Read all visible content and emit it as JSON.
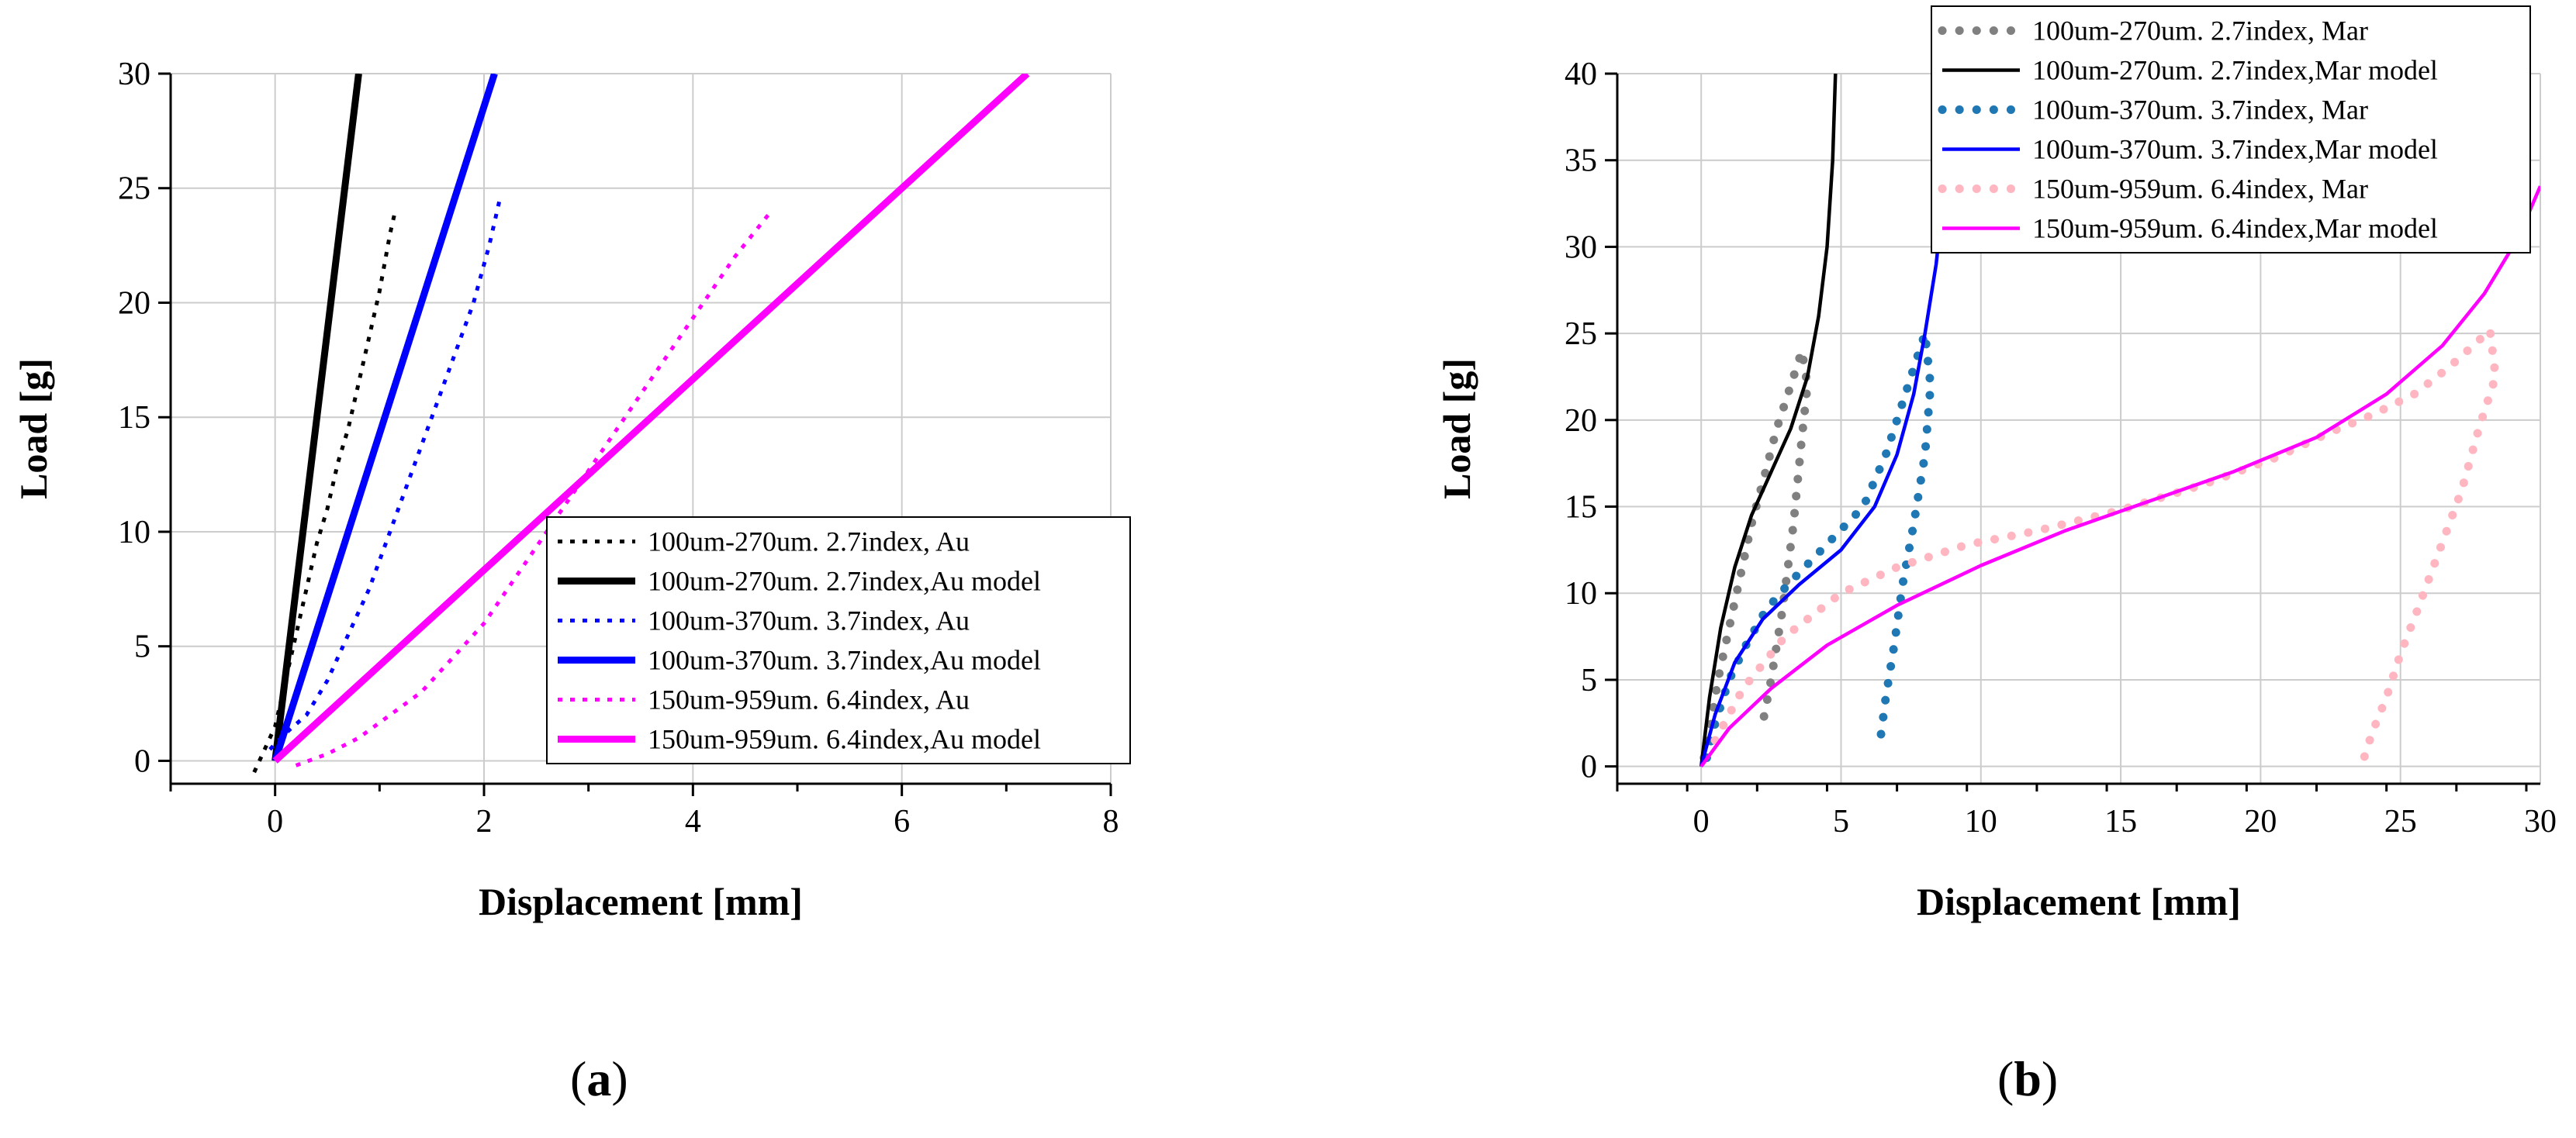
{
  "chart_data": [
    {
      "type": "line",
      "panel": "(a)",
      "panel_letter": "a",
      "xlabel": "Displacement [mm]",
      "ylabel": "Load [g]",
      "xlim": [
        -1,
        8
      ],
      "ylim": [
        -1,
        30
      ],
      "xticks": [
        0,
        2,
        4,
        6,
        8
      ],
      "yticks": [
        0,
        5,
        10,
        15,
        20,
        25,
        30
      ],
      "grid": true,
      "legend_position": "bottom-right",
      "series": [
        {
          "name": "100um-270um. 2.7index, Au",
          "style": "dotted",
          "color": "#000000",
          "x": [
            -0.2,
            -0.1,
            0.0,
            0.1,
            0.2,
            0.3,
            0.4,
            0.5,
            0.6,
            0.7,
            0.8,
            0.9,
            1.0,
            1.1,
            1.15
          ],
          "y": [
            -0.5,
            0.5,
            1.5,
            3.5,
            5.5,
            7.5,
            9.5,
            11.0,
            13.0,
            14.5,
            16.5,
            18.5,
            20.5,
            23.0,
            24.0
          ]
        },
        {
          "name": "100um-270um. 2.7index,Au model",
          "style": "solid-thick",
          "color": "#000000",
          "x": [
            0,
            0.8
          ],
          "y": [
            0,
            30
          ]
        },
        {
          "name": "100um-370um. 3.7index, Au",
          "style": "dotted",
          "color": "#0000ff",
          "x": [
            -0.05,
            0.1,
            0.3,
            0.5,
            0.7,
            0.9,
            1.1,
            1.3,
            1.5,
            1.7,
            1.9,
            2.05,
            2.15
          ],
          "y": [
            0.5,
            1.2,
            2.0,
            3.5,
            5.5,
            7.5,
            10.0,
            12.5,
            15.0,
            17.5,
            20.0,
            22.5,
            24.5
          ]
        },
        {
          "name": "100um-370um. 3.7index,Au model",
          "style": "solid-thick",
          "color": "#0000ff",
          "x": [
            0,
            2.1
          ],
          "y": [
            0,
            30
          ]
        },
        {
          "name": "150um-959um. 6.4index, Au",
          "style": "dotted",
          "color": "#ff00ff",
          "x": [
            0.2,
            0.5,
            0.8,
            1.1,
            1.4,
            1.7,
            2.0,
            2.3,
            2.6,
            2.9,
            3.2,
            3.5,
            3.8,
            4.1,
            4.4,
            4.75
          ],
          "y": [
            -0.2,
            0.3,
            1.0,
            2.0,
            3.0,
            4.5,
            6.0,
            8.0,
            10.0,
            12.0,
            14.0,
            16.0,
            18.0,
            20.0,
            22.0,
            24.0
          ]
        },
        {
          "name": "150um-959um. 6.4index,Au model",
          "style": "solid-thick",
          "color": "#ff00ff",
          "x": [
            0,
            7.2
          ],
          "y": [
            0,
            30
          ]
        }
      ]
    },
    {
      "type": "line",
      "panel": "(b)",
      "panel_letter": "b",
      "xlabel": "Displacement [mm]",
      "ylabel": "Load [g]",
      "xlim": [
        -3,
        30
      ],
      "ylim": [
        -1,
        40
      ],
      "xticks": [
        0,
        5,
        10,
        15,
        20,
        25,
        30
      ],
      "yticks": [
        0,
        5,
        10,
        15,
        20,
        25,
        30,
        35,
        40
      ],
      "grid": true,
      "legend_position": "top-right",
      "series": [
        {
          "name": "100um-270um. 2.7index, Mar",
          "style": "dots",
          "color": "#808080",
          "x": [
            0.1,
            0.3,
            0.6,
            1.0,
            1.4,
            1.8,
            2.3,
            2.7,
            3.0,
            3.3,
            3.6,
            3.8,
            3.6,
            3.3,
            2.9,
            2.5,
            2.2
          ],
          "y": [
            0.5,
            2.0,
            5.0,
            8.0,
            11.0,
            14.0,
            17.0,
            19.5,
            21.0,
            22.5,
            24.0,
            22.0,
            19.0,
            14.0,
            9.0,
            5.0,
            2.5
          ]
        },
        {
          "name": "100um-270um. 2.7index,Mar model",
          "style": "solid",
          "color": "#000000",
          "x": [
            0,
            0.3,
            0.7,
            1.2,
            1.8,
            2.5,
            3.2,
            3.8,
            4.2,
            4.5,
            4.7,
            4.8
          ],
          "y": [
            0,
            4,
            8,
            11.5,
            14.5,
            17,
            19.5,
            22.5,
            26,
            30,
            35,
            40
          ]
        },
        {
          "name": "100um-370um. 3.7index, Mar",
          "style": "dots",
          "color": "#1f77b4",
          "x": [
            0.2,
            0.5,
            1.0,
            1.6,
            2.3,
            3.1,
            4.0,
            4.9,
            5.8,
            6.6,
            7.2,
            7.7,
            8.0,
            8.2,
            8.0,
            7.6,
            7.2,
            6.9,
            6.6,
            6.4
          ],
          "y": [
            0.5,
            2.5,
            5.0,
            7.0,
            9.0,
            10.5,
            12.0,
            13.5,
            15.0,
            18.0,
            21.0,
            23.5,
            25.0,
            22.0,
            18.0,
            14.0,
            10.5,
            7.0,
            4.0,
            1.5
          ]
        },
        {
          "name": "100um-370um. 3.7index,Mar model",
          "style": "solid",
          "color": "#0000ff",
          "x": [
            0,
            0.5,
            1.2,
            2.2,
            3.5,
            5.0,
            6.2,
            7.0,
            7.6,
            8.0,
            8.4,
            8.6
          ],
          "y": [
            0,
            3,
            6,
            8.5,
            10.5,
            12.5,
            15,
            18,
            21.5,
            25,
            29,
            32
          ]
        },
        {
          "name": "150um-959um. 6.4index, Mar",
          "style": "dots",
          "color": "#ffb6c1",
          "x": [
            0.5,
            1.5,
            3,
            5,
            7,
            9.5,
            12,
            15,
            18,
            20.5,
            22.5,
            24,
            25.5,
            26.7,
            27.6,
            28.2,
            28.4,
            27.8,
            27.2,
            26.4,
            25.6,
            25.0,
            24.5,
            24.0,
            23.7
          ],
          "y": [
            1.5,
            4.5,
            7.5,
            10.0,
            11.5,
            12.8,
            13.6,
            14.8,
            16.3,
            17.8,
            19.3,
            20.3,
            21.5,
            23.0,
            24.3,
            25.2,
            22.5,
            19.5,
            16.0,
            12.5,
            9.0,
            6.5,
            4.0,
            2.0,
            0.5
          ]
        },
        {
          "name": "150um-959um. 6.4index,Mar model",
          "style": "solid",
          "color": "#ff00ff",
          "x": [
            0,
            1,
            2.5,
            4.5,
            7,
            10,
            13,
            16,
            19,
            22,
            24.5,
            26.5,
            28,
            29.2,
            30
          ],
          "y": [
            0,
            2.2,
            4.5,
            7,
            9.3,
            11.6,
            13.6,
            15.3,
            17,
            19,
            21.5,
            24.3,
            27.3,
            30.5,
            33.5
          ]
        }
      ]
    }
  ]
}
